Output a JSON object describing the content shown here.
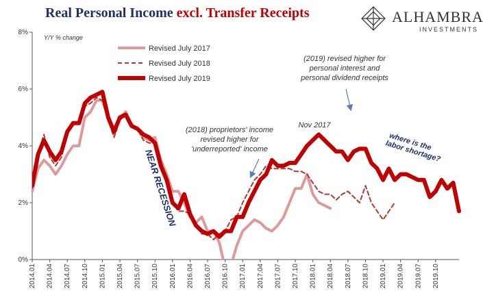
{
  "title": {
    "part1": "Real Personal Income",
    "part2": "excl. Transfer Receipts"
  },
  "brand": {
    "name": "ALHAMBRA",
    "sub": "INVESTMENTS"
  },
  "colors": {
    "series_2017": "#de9a9a",
    "series_2018": "#b03a2e",
    "series_2019": "#c00000",
    "annotation": "#1f2f6b",
    "arrow": "#5b7bb5"
  },
  "chart_data": {
    "type": "line",
    "ylabel": "Y/Y % change",
    "ylim": [
      0,
      8
    ],
    "yticks": [
      "0%",
      "2%",
      "4%",
      "6%",
      "8%"
    ],
    "grid": false,
    "legend_position": "top-left",
    "xticks": [
      "2014.01",
      "2014.04",
      "2014.07",
      "2014.10",
      "2015.01",
      "2015.04",
      "2015.07",
      "2015.10",
      "2016.01",
      "2016.04",
      "2016.07",
      "2016.10",
      "2017.01",
      "2017.04",
      "2017.07",
      "2017.10",
      "2018.01",
      "2018.04",
      "2018.07",
      "2018.10",
      "2019.01",
      "2019.04",
      "2019.07",
      "2019.10"
    ],
    "series": [
      {
        "name": "Revised July 2017",
        "style": "solid-thin",
        "start": "2014.01",
        "values": [
          2.4,
          3.2,
          3.5,
          3.3,
          3.0,
          3.3,
          3.7,
          4.0,
          4.0,
          5.0,
          5.2,
          5.6,
          5.6,
          5.0,
          4.4,
          5.0,
          5.2,
          4.7,
          4.6,
          4.3,
          4.2,
          4.3,
          3.5,
          3.0,
          2.4,
          2.4,
          2.0,
          1.5,
          1.3,
          1.5,
          1.0,
          1.0,
          0.6,
          -0.3,
          -0.2,
          0.5,
          1.0,
          1.2,
          1.4,
          1.3,
          1.1,
          1.0,
          1.2,
          1.5,
          2.0,
          2.5,
          2.5,
          3.0,
          2.3,
          2.0,
          1.9,
          1.8
        ]
      },
      {
        "name": "Revised July 2018",
        "style": "dashed",
        "start": "2014.01",
        "values": [
          2.5,
          3.7,
          4.4,
          3.6,
          3.3,
          3.6,
          4.4,
          4.8,
          4.8,
          5.4,
          5.5,
          5.7,
          5.6,
          4.9,
          4.3,
          4.9,
          5.1,
          4.8,
          4.6,
          4.2,
          4.1,
          4.1,
          3.3,
          2.8,
          2.0,
          1.7,
          1.7,
          1.6,
          1.3,
          0.9,
          0.9,
          0.7,
          0.9,
          1.0,
          1.4,
          1.5,
          2.0,
          2.4,
          2.8,
          3.0,
          3.3,
          3.2,
          3.2,
          3.2,
          3.2,
          3.1,
          3.1,
          3.0,
          2.7,
          2.4,
          2.3,
          2.3,
          2.1,
          2.3,
          2.4,
          2.2,
          2.0,
          2.6,
          2.0,
          1.7,
          1.4,
          1.7,
          2.0
        ]
      },
      {
        "name": "Revised July 2019",
        "style": "solid-thick",
        "start": "2014.01",
        "values": [
          2.6,
          3.7,
          4.2,
          3.8,
          3.5,
          3.8,
          4.5,
          4.8,
          4.8,
          5.5,
          5.7,
          5.8,
          5.9,
          5.0,
          4.5,
          5.0,
          5.1,
          4.7,
          4.6,
          4.4,
          4.3,
          4.1,
          3.3,
          2.8,
          2.0,
          1.8,
          2.3,
          1.6,
          1.2,
          1.0,
          0.9,
          1.0,
          0.8,
          1.0,
          1.0,
          1.5,
          1.5,
          2.0,
          2.4,
          2.8,
          3.0,
          3.5,
          3.3,
          3.3,
          3.4,
          3.4,
          3.7,
          4.0,
          4.2,
          4.4,
          4.2,
          4.0,
          3.8,
          3.8,
          3.5,
          3.8,
          3.9,
          3.9,
          3.4,
          3.2,
          2.8,
          3.2,
          2.8,
          3.0,
          3.0,
          2.9,
          2.8,
          2.8,
          2.2,
          2.4,
          2.8,
          2.5,
          2.7,
          1.7
        ]
      }
    ],
    "annotations": {
      "near_recession": "NEAR RECESSION",
      "nov_2017": "Nov 2017",
      "note_2018": [
        "(2018) proprietors' income",
        "revised higher for",
        "'underreported' income"
      ],
      "note_2019": [
        "(2019) revised higher for",
        "personal interest and",
        "personal dividend receipts"
      ],
      "labor": [
        "where is the",
        "labor shortage?"
      ]
    }
  }
}
